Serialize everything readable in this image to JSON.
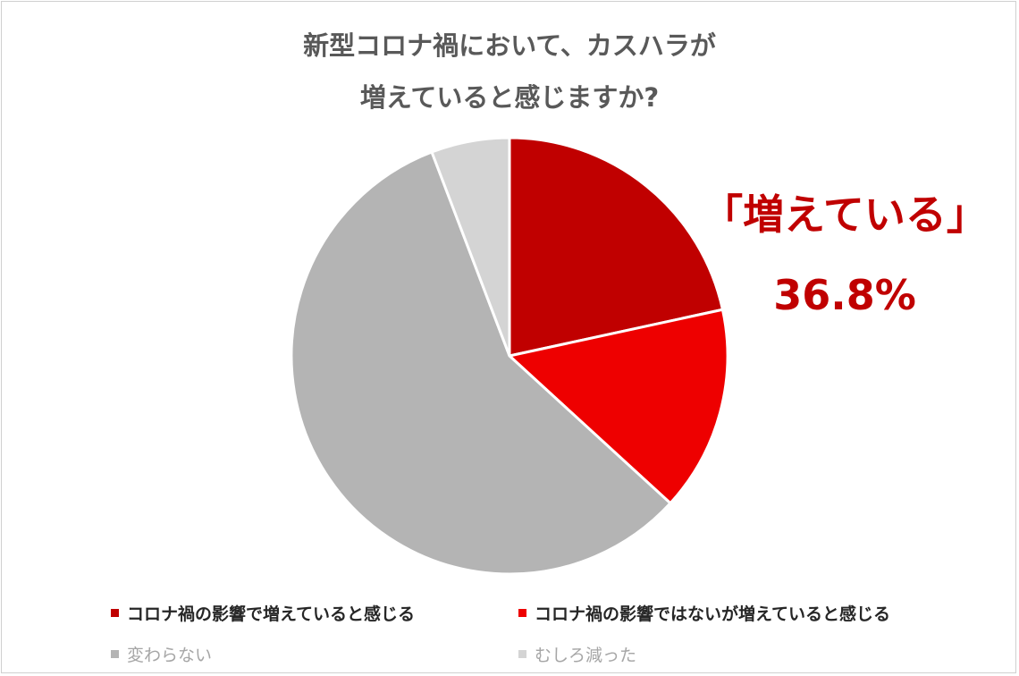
{
  "chart_data": {
    "type": "pie",
    "title_lines": [
      "新型コロナ禍において、カスハラが",
      "増えていると感じますか?"
    ],
    "slices": [
      {
        "label": "コロナ禍の影響で増えていると感じる",
        "value": 21.6,
        "color": "#c00000"
      },
      {
        "label": "コロナ禍の影響ではないが増えていると感じる",
        "value": 15.2,
        "color": "#ee0000"
      },
      {
        "label": "変わらない",
        "value": 57.4,
        "color": "#b4b4b4"
      },
      {
        "label": "むしろ減った",
        "value": 5.8,
        "color": "#d4d4d4"
      }
    ],
    "start_angle_deg": 0,
    "direction": "clockwise",
    "legend_position": "bottom"
  },
  "callout": {
    "label": "「増えている」",
    "value": "36.8%"
  }
}
